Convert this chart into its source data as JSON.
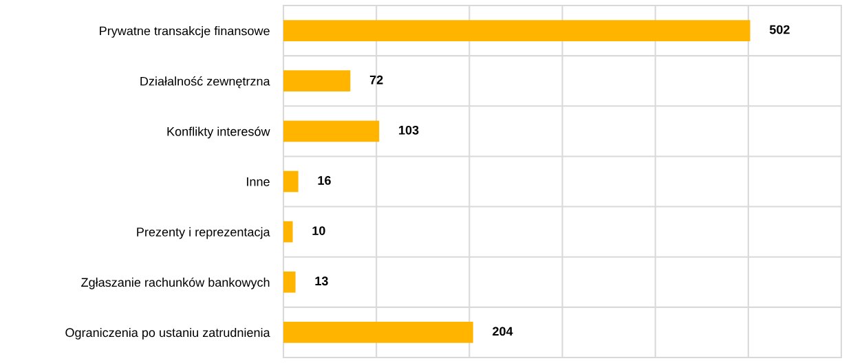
{
  "chart_data": {
    "type": "bar",
    "orientation": "horizontal",
    "categories": [
      "Prywatne transakcje finansowe",
      "Działalność zewnętrzna",
      "Konflikty interesów",
      "Inne",
      "Prezenty i reprezentacja",
      "Zgłaszanie rachunków bankowych",
      "Ograniczenia po ustaniu zatrudnienia"
    ],
    "values": [
      502,
      72,
      103,
      16,
      10,
      13,
      204
    ],
    "color": "#ffb400",
    "xlim": [
      0,
      600
    ],
    "xticks": [
      {
        "value": 0,
        "label": null
      },
      {
        "value": 100,
        "label": null
      },
      {
        "value": 200,
        "label": null
      },
      {
        "value": 300,
        "label": null
      },
      {
        "value": 400,
        "label": null
      },
      {
        "value": 500,
        "label": null
      },
      {
        "value": 600,
        "label": null
      }
    ],
    "tick_labels": "y",
    "grid": true,
    "data_labels": true
  }
}
